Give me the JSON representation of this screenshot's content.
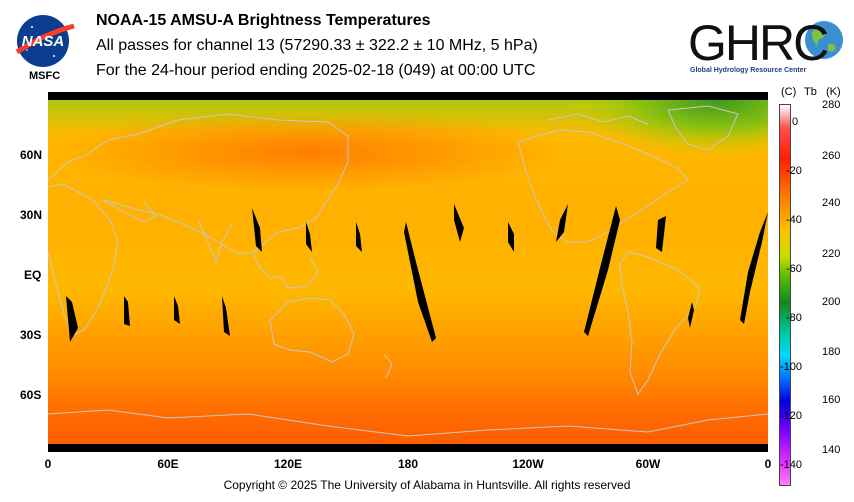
{
  "header": {
    "title": "NOAA-15 AMSU-A Brightness Temperatures",
    "subtitle": "All passes for channel 13 (57290.33 ± 322.2 ± 10 MHz, 5 hPa)",
    "period": "For the 24-hour period ending 2025-02-18 (049) at 00:00 UTC"
  },
  "logos": {
    "nasa": "NASA",
    "nasa_center": "MSFC",
    "ghrc": "GHRC",
    "ghrc_full": "Global Hydrology Resource Center"
  },
  "map": {
    "lat_labels": [
      "60N",
      "30N",
      "EQ",
      "30S",
      "60S"
    ],
    "lon_labels": [
      "0",
      "60E",
      "120E",
      "180",
      "120W",
      "60W",
      "0"
    ]
  },
  "colorbar": {
    "unit_c": "(C)",
    "unit_tb": "Tb",
    "unit_k": "(K)",
    "celsius_ticks": [
      "0",
      "-20",
      "-40",
      "-60",
      "-80",
      "-100",
      "-120",
      "-140"
    ],
    "kelvin_ticks": [
      "280",
      "260",
      "240",
      "220",
      "200",
      "180",
      "160",
      "140"
    ],
    "colors": [
      "#ffffff",
      "#ff2000",
      "#ff7a00",
      "#ffc000",
      "#5abe00",
      "#0f8a20",
      "#00d8ff",
      "#0000dc",
      "#8000ff",
      "#ff80ff"
    ]
  },
  "footer": {
    "copyright": "Copyright © 2025 The University of Alabama in Huntsville.  All rights reserved"
  }
}
